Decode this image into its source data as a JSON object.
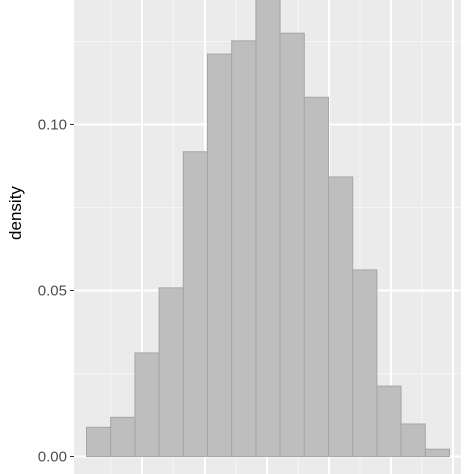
{
  "chart_data": {
    "type": "bar",
    "ylabel": "density",
    "xlabel": "",
    "ylim": [
      -0.0015,
      0.137
    ],
    "y_ticks": [
      0.0,
      0.05,
      0.1
    ],
    "y_tick_labels": [
      "0.00",
      "0.05",
      "0.10"
    ],
    "grid": true,
    "bins": 15,
    "values": [
      0.0088,
      0.0118,
      0.0312,
      0.0508,
      0.0918,
      0.1212,
      0.1252,
      0.1385,
      0.1275,
      0.1082,
      0.0842,
      0.0562,
      0.0212,
      0.0098,
      0.0022
    ],
    "colors": {
      "panel": "#ebebeb",
      "grid_major": "#ffffff",
      "grid_minor": "#f5f5f5",
      "bar_fill": "#bebebe",
      "bar_stroke": "#a6a6a6",
      "tick": "#333333"
    }
  }
}
